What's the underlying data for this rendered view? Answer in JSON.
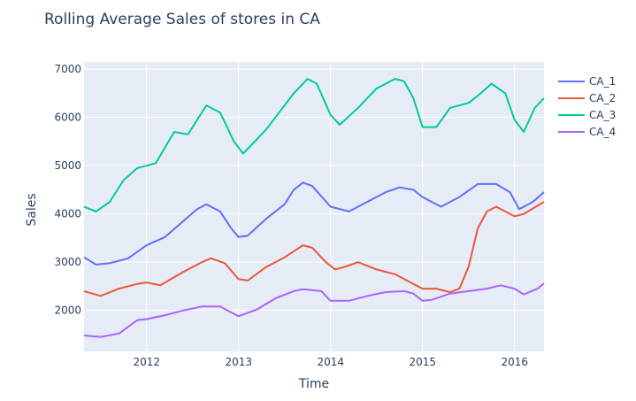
{
  "chart_data": {
    "type": "line",
    "title": "Rolling Average Sales of stores in CA",
    "xlabel": "Time",
    "ylabel": "Sales",
    "xlim": [
      2011.32,
      2016.32
    ],
    "ylim": [
      1150,
      7150
    ],
    "x_ticks": [
      2012,
      2013,
      2014,
      2015,
      2016
    ],
    "x_tick_labels": [
      "2012",
      "2013",
      "2014",
      "2015",
      "2016"
    ],
    "y_ticks": [
      2000,
      3000,
      4000,
      5000,
      6000,
      7000
    ],
    "y_tick_labels": [
      "2000",
      "3000",
      "4000",
      "5000",
      "6000",
      "7000"
    ],
    "legend_position": "top-right",
    "grid": true,
    "series": [
      {
        "name": "CA_1",
        "color": "#636efa",
        "x": [
          2011.32,
          2011.45,
          2011.6,
          2011.8,
          2012.0,
          2012.2,
          2012.4,
          2012.55,
          2012.65,
          2012.8,
          2012.92,
          2013.0,
          2013.1,
          2013.3,
          2013.5,
          2013.6,
          2013.7,
          2013.8,
          2014.0,
          2014.2,
          2014.4,
          2014.6,
          2014.75,
          2014.9,
          2015.0,
          2015.2,
          2015.4,
          2015.6,
          2015.8,
          2015.95,
          2016.05,
          2016.2,
          2016.32
        ],
        "y": [
          3100,
          2950,
          2980,
          3080,
          3350,
          3520,
          3850,
          4100,
          4200,
          4050,
          3700,
          3520,
          3550,
          3900,
          4200,
          4500,
          4650,
          4580,
          4150,
          4050,
          4250,
          4450,
          4550,
          4500,
          4350,
          4150,
          4350,
          4620,
          4620,
          4450,
          4100,
          4250,
          4450
        ]
      },
      {
        "name": "CA_2",
        "color": "#ef553b",
        "x": [
          2011.32,
          2011.5,
          2011.7,
          2011.9,
          2012.0,
          2012.15,
          2012.4,
          2012.6,
          2012.7,
          2012.85,
          2013.0,
          2013.1,
          2013.3,
          2013.5,
          2013.7,
          2013.8,
          2013.95,
          2014.05,
          2014.15,
          2014.3,
          2014.5,
          2014.7,
          2014.9,
          2015.0,
          2015.15,
          2015.3,
          2015.4,
          2015.5,
          2015.6,
          2015.7,
          2015.8,
          2016.0,
          2016.1,
          2016.32
        ],
        "y": [
          2400,
          2300,
          2450,
          2550,
          2580,
          2520,
          2800,
          3000,
          3080,
          2980,
          2650,
          2620,
          2900,
          3100,
          3350,
          3300,
          3000,
          2850,
          2900,
          3000,
          2850,
          2750,
          2550,
          2450,
          2450,
          2380,
          2450,
          2900,
          3700,
          4050,
          4150,
          3950,
          4000,
          4250
        ]
      },
      {
        "name": "CA_3",
        "color": "#00cc96",
        "x": [
          2011.32,
          2011.45,
          2011.6,
          2011.75,
          2011.9,
          2012.0,
          2012.1,
          2012.3,
          2012.45,
          2012.65,
          2012.8,
          2012.95,
          2013.05,
          2013.3,
          2013.5,
          2013.6,
          2013.75,
          2013.85,
          2014.0,
          2014.1,
          2014.3,
          2014.5,
          2014.7,
          2014.8,
          2014.9,
          2015.0,
          2015.15,
          2015.3,
          2015.5,
          2015.6,
          2015.75,
          2015.9,
          2016.0,
          2016.1,
          2016.22,
          2016.32
        ],
        "y": [
          4150,
          4050,
          4250,
          4700,
          4950,
          5000,
          5050,
          5700,
          5650,
          6250,
          6100,
          5500,
          5250,
          5750,
          6250,
          6500,
          6800,
          6700,
          6050,
          5850,
          6200,
          6600,
          6800,
          6750,
          6400,
          5800,
          5800,
          6200,
          6300,
          6450,
          6700,
          6500,
          5950,
          5700,
          6200,
          6400
        ]
      },
      {
        "name": "CA_4",
        "color": "#ab63fa",
        "x": [
          2011.32,
          2011.5,
          2011.7,
          2011.9,
          2012.0,
          2012.2,
          2012.4,
          2012.6,
          2012.8,
          2013.0,
          2013.2,
          2013.4,
          2013.6,
          2013.7,
          2013.9,
          2014.0,
          2014.2,
          2014.4,
          2014.6,
          2014.8,
          2014.9,
          2015.0,
          2015.1,
          2015.3,
          2015.5,
          2015.7,
          2015.85,
          2016.0,
          2016.1,
          2016.25,
          2016.32
        ],
        "y": [
          1480,
          1450,
          1520,
          1800,
          1820,
          1900,
          2000,
          2080,
          2080,
          1880,
          2020,
          2250,
          2400,
          2440,
          2400,
          2200,
          2200,
          2300,
          2380,
          2400,
          2350,
          2200,
          2220,
          2350,
          2400,
          2450,
          2520,
          2450,
          2330,
          2450,
          2560
        ]
      }
    ]
  }
}
